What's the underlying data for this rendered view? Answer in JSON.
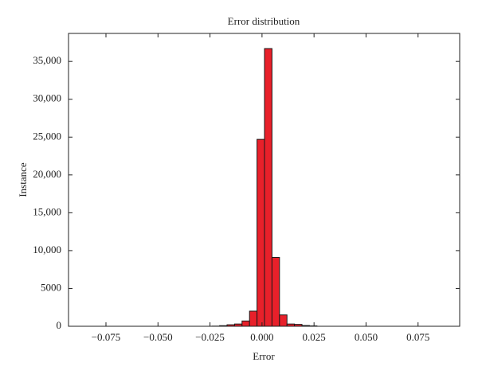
{
  "chart_data": {
    "type": "histogram",
    "title": "Error distribution",
    "x_label": "Error",
    "y_label": "Instance",
    "bins": [
      -0.024,
      -0.0204,
      -0.0168,
      -0.0132,
      -0.0096,
      -0.006,
      -0.0024,
      0.0012,
      0.0048,
      0.0084,
      0.012,
      0.0156,
      0.0192,
      0.0228,
      0.0264
    ],
    "counts": [
      20,
      80,
      200,
      300,
      700,
      2000,
      24700,
      36700,
      9100,
      1500,
      300,
      250,
      100,
      50
    ],
    "color": "#e8202a",
    "edge_color": "#1a1a1a",
    "xlim": [
      -0.093,
      0.095
    ],
    "xticks": [
      {
        "value": -0.075,
        "label": "−0.075"
      },
      {
        "value": -0.05,
        "label": "−0.050"
      },
      {
        "value": -0.025,
        "label": "−0.025"
      },
      {
        "value": 0,
        "label": "0.000"
      },
      0.025,
      {
        "value": 0.05,
        "label": "0.050"
      },
      0.075
    ],
    "ylim": [
      0,
      38700
    ],
    "yticks": [
      0,
      5000,
      {
        "value": 10000,
        "label": "10,000"
      },
      {
        "value": 15000,
        "label": "15,000"
      },
      {
        "value": 20000,
        "label": "20,000"
      },
      {
        "value": 25000,
        "label": "25,000"
      },
      {
        "value": 30000,
        "label": "30,000"
      },
      {
        "value": 35000,
        "label": "35,000"
      }
    ]
  }
}
